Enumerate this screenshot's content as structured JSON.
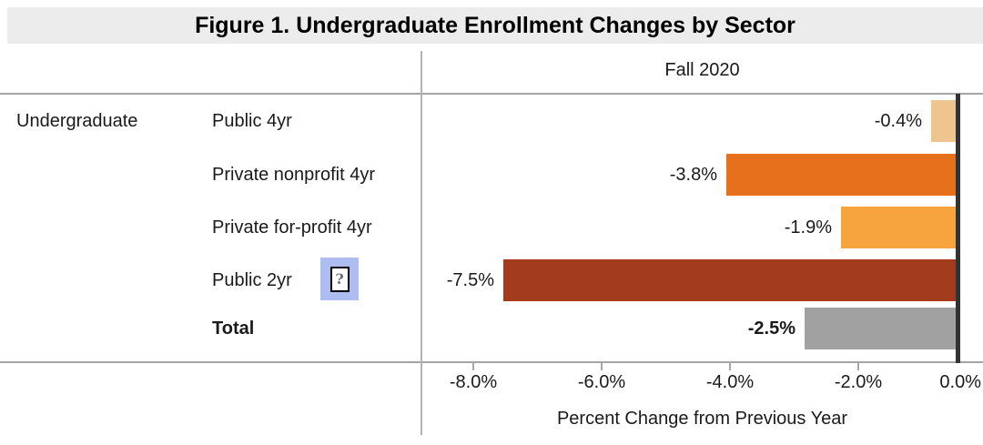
{
  "figure": {
    "title": "Figure 1. Undergraduate Enrollment Changes by Sector"
  },
  "header": {
    "column_label": "Fall 2020"
  },
  "left_panel": {
    "group_label": "Undergraduate"
  },
  "icon": {
    "placeholder_glyph": "?"
  },
  "chart_data": {
    "type": "bar",
    "orientation": "horizontal",
    "title": "Figure 1. Undergraduate Enrollment Changes by Sector",
    "column_header": "Fall 2020",
    "group_label": "Undergraduate",
    "categories": [
      "Public 4yr",
      "Private nonprofit 4yr",
      "Private for-profit 4yr",
      "Public 2yr",
      "Total"
    ],
    "values": [
      -0.4,
      -3.8,
      -1.9,
      -7.5,
      -2.5
    ],
    "value_labels": [
      "-0.4%",
      "-3.8%",
      "-1.9%",
      "-7.5%",
      "-2.5%"
    ],
    "bar_colors": [
      "#eec48f",
      "#e7701d",
      "#f7a33e",
      "#a23c1c",
      "#a1a1a1"
    ],
    "xlabel": "Percent Change from Previous Year",
    "xlim": [
      -8.8,
      0
    ],
    "x_tick_values": [
      -8,
      -6,
      -4,
      -2,
      0
    ],
    "x_tick_labels": [
      "-8.0%",
      "-6.0%",
      "-4.0%",
      "-2.0%",
      "0.0%"
    ],
    "zero_line_color": "#333333",
    "grid": "off",
    "legend": "none"
  }
}
